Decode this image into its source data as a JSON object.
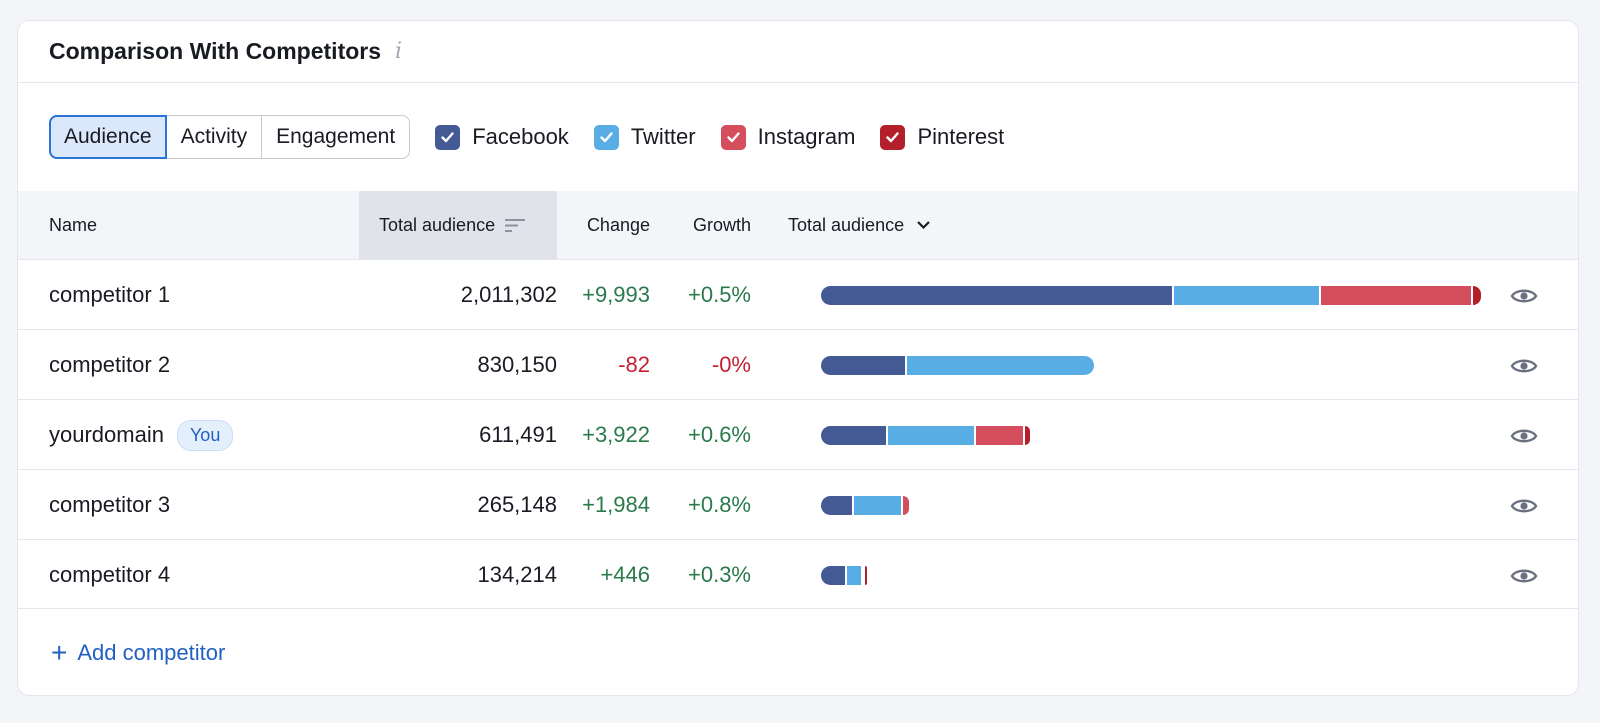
{
  "title": "Comparison With Competitors",
  "tabs": [
    {
      "label": "Audience",
      "active": true
    },
    {
      "label": "Activity",
      "active": false
    },
    {
      "label": "Engagement",
      "active": false
    }
  ],
  "legend": [
    {
      "label": "Facebook",
      "color": "#435a95",
      "checked": true,
      "icon": "check-icon"
    },
    {
      "label": "Twitter",
      "color": "#58ade5",
      "checked": true,
      "icon": "check-icon"
    },
    {
      "label": "Instagram",
      "color": "#d44e5e",
      "checked": true,
      "icon": "check-icon"
    },
    {
      "label": "Pinterest",
      "color": "#b3202b",
      "checked": true,
      "icon": "check-icon"
    }
  ],
  "columns": {
    "name": "Name",
    "total": "Total audience",
    "change": "Change",
    "growth": "Growth",
    "chart": "Total audience"
  },
  "rows": [
    {
      "name": "competitor 1",
      "badge": "",
      "total": "2,011,302",
      "change": "+9,993",
      "growth": "+0.5%",
      "trend": "pos",
      "segments": [
        0.535,
        0.222,
        0.231,
        0.012
      ]
    },
    {
      "name": "competitor 2",
      "badge": "",
      "total": "830,150",
      "change": "-82",
      "growth": "-0%",
      "trend": "neg",
      "segments": [
        0.13,
        0.283,
        0,
        0
      ]
    },
    {
      "name": "yourdomain",
      "badge": "You",
      "total": "611,491",
      "change": "+3,922",
      "growth": "+0.6%",
      "trend": "pos",
      "segments": [
        0.101,
        0.133,
        0.074,
        0.008
      ]
    },
    {
      "name": "competitor 3",
      "badge": "",
      "total": "265,148",
      "change": "+1,984",
      "growth": "+0.8%",
      "trend": "pos",
      "segments": [
        0.05,
        0.074,
        0.009,
        0
      ]
    },
    {
      "name": "competitor 4",
      "badge": "",
      "total": "134,214",
      "change": "+446",
      "growth": "+0.3%",
      "trend": "pos",
      "segments": [
        0.04,
        0.024,
        0.003,
        0.002
      ]
    }
  ],
  "add_competitor": "Add competitor",
  "colors": {
    "positive": "#2b7a4b",
    "negative": "#c41f32",
    "accent": "#2161c4"
  }
}
